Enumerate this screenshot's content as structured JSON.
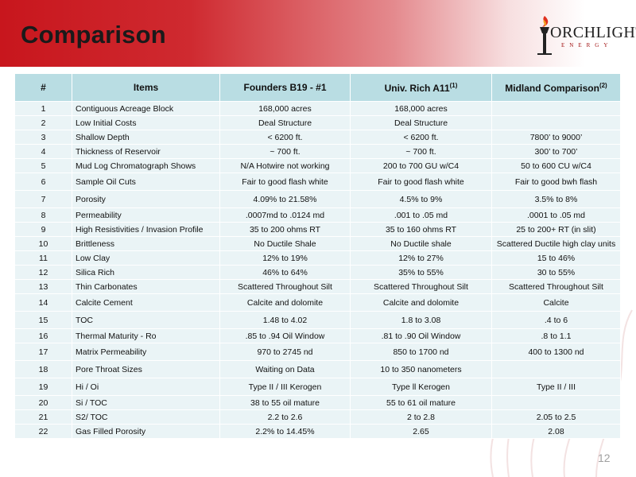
{
  "slide": {
    "title": "Comparison",
    "page_number": "12",
    "logo_text": "ORCHLIGHT",
    "logo_sub": "ENERGY",
    "colors": {
      "header_red": "#c8161d",
      "table_header": "#b9dde3",
      "table_row": "#eaf4f6"
    }
  },
  "table": {
    "headers": {
      "num": "#",
      "items": "Items",
      "founders": "Founders B19 - #1",
      "univ": "Univ. Rich A11",
      "univ_note": "(1)",
      "midland": "Midland Comparison",
      "midland_note": "(2)"
    },
    "rows": [
      {
        "num": "1",
        "item": "Contiguous Acreage Block",
        "founders": "168,000 acres",
        "univ": "168,000 acres",
        "midland": ""
      },
      {
        "num": "2",
        "item": "Low Initial Costs",
        "founders": "Deal Structure",
        "univ": "Deal Structure",
        "midland": ""
      },
      {
        "num": "3",
        "item": "Shallow Depth",
        "founders": "< 6200 ft.",
        "univ": "< 6200 ft.",
        "midland": "7800’ to 9000’"
      },
      {
        "num": "4",
        "item": "Thickness of Reservoir",
        "founders": "~ 700 ft.",
        "univ": "~ 700 ft.",
        "midland": "300’ to 700’"
      },
      {
        "num": "5",
        "item": "Mud Log Chromatograph Shows",
        "founders": "N/A Hotwire not working",
        "univ": "200 to 700 GU w/C4",
        "midland": "50 to 600 CU w/C4"
      },
      {
        "num": "6",
        "item": "Sample Oil Cuts",
        "founders": "Fair to good flash white",
        "univ": "Fair to good flash white",
        "midland": "Fair to good bwh flash"
      },
      {
        "num": "7",
        "item": "Porosity",
        "founders": "4.09% to 21.58%",
        "univ": "4.5% to 9%",
        "midland": "3.5% to 8%"
      },
      {
        "num": "8",
        "item": "Permeability",
        "founders": ".0007md to .0124 md",
        "univ": ".001 to .05 md",
        "midland": ".0001 to .05 md"
      },
      {
        "num": "9",
        "item": "High Resistivities / Invasion Profile",
        "founders": "35 to 200 ohms RT",
        "univ": "35 to 160 ohms RT",
        "midland": "25 to 200+ RT (in slit)"
      },
      {
        "num": "10",
        "item": "Brittleness",
        "founders": "No Ductile Shale",
        "univ": "No Ductile shale",
        "midland": "Scattered Ductile high clay units"
      },
      {
        "num": "11",
        "item": "Low Clay",
        "founders": "12% to 19%",
        "univ": "12% to 27%",
        "midland": "15 to 46%"
      },
      {
        "num": "12",
        "item": "Silica Rich",
        "founders": "46% to 64%",
        "univ": "35% to 55%",
        "midland": "30 to 55%"
      },
      {
        "num": "13",
        "item": "Thin Carbonates",
        "founders": "Scattered Throughout Silt",
        "univ": "Scattered Throughout Silt",
        "midland": "Scattered Throughout Silt"
      },
      {
        "num": "14",
        "item": "Calcite Cement",
        "founders": "Calcite and dolomite",
        "univ": "Calcite and dolomite",
        "midland": "Calcite"
      },
      {
        "num": "15",
        "item": "TOC",
        "founders": "1.48 to 4.02",
        "univ": "1.8 to 3.08",
        "midland": ".4 to 6"
      },
      {
        "num": "16",
        "item": "Thermal Maturity - Ro",
        "founders": ".85 to .94 Oil Window",
        "univ": ".81 to .90 Oil Window",
        "midland": ".8 to 1.1"
      },
      {
        "num": "17",
        "item": "Matrix Permeability",
        "founders": "970 to 2745 nd",
        "univ": "850 to 1700 nd",
        "midland": "400 to 1300 nd"
      },
      {
        "num": "18",
        "item": "Pore Throat Sizes",
        "founders": "Waiting on Data",
        "univ": "10 to 350 nanometers",
        "midland": ""
      },
      {
        "num": "19",
        "item": "Hi / Oi",
        "founders": "Type II / III Kerogen",
        "univ": "Type ll Kerogen",
        "midland": "Type II / III"
      },
      {
        "num": "20",
        "item": "Si / TOC",
        "founders": "38 to 55 oil mature",
        "univ": "55 to 61 oil mature",
        "midland": ""
      },
      {
        "num": "21",
        "item": "S2/ TOC",
        "founders": "2.2 to 2.6",
        "univ": "2 to 2.8",
        "midland": "2.05 to 2.5"
      },
      {
        "num": "22",
        "item": "Gas Filled Porosity",
        "founders": "2.2% to 14.45%",
        "univ": "2.65",
        "midland": "2.08"
      }
    ]
  }
}
